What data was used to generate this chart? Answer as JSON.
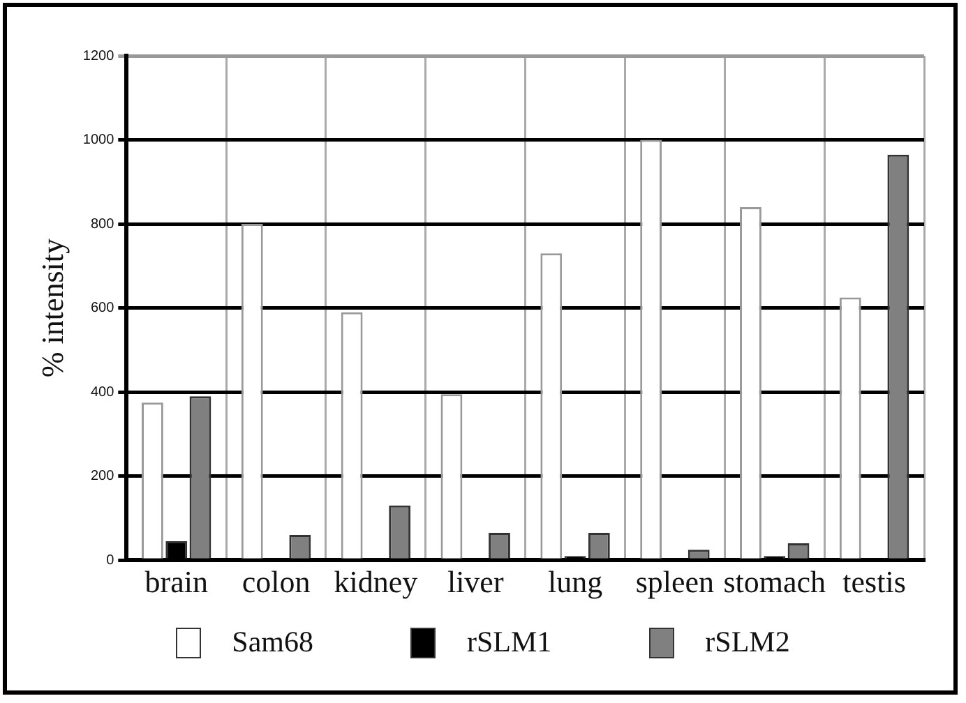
{
  "chart_data": {
    "type": "bar",
    "ylabel": "% intensity",
    "categories": [
      "brain",
      "colon",
      "kidney",
      "liver",
      "lung",
      "spleen",
      "stomach",
      "testis"
    ],
    "series": [
      {
        "name": "Sam68",
        "color": "#ffffff",
        "values": [
          375,
          800,
          590,
          395,
          730,
          1000,
          840,
          625
        ]
      },
      {
        "name": "rSLM1",
        "color": "#000000",
        "values": [
          45,
          0,
          5,
          0,
          10,
          5,
          10,
          5
        ]
      },
      {
        "name": "rSLM2",
        "color": "#808080",
        "values": [
          390,
          60,
          130,
          65,
          65,
          25,
          40,
          965
        ]
      }
    ],
    "ylim": [
      0,
      1200
    ],
    "yticks": [
      0,
      200,
      400,
      600,
      800,
      1000,
      1200
    ],
    "grid": true,
    "legend": "bottom"
  }
}
